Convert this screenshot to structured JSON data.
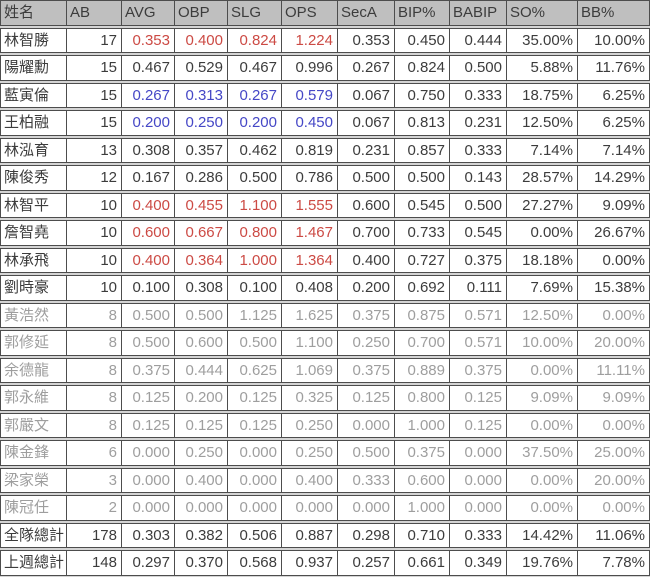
{
  "colors": {
    "gap_background": "#d4d4d4",
    "grid_border": "#4d4d4d",
    "header_background": "#bfbfbf",
    "header_text": "#3c3c3c",
    "default_text": "#3c3c3c",
    "muted_text": "#9e9e9e",
    "accent_red": "#cc4a44",
    "accent_blue": "#4547c6",
    "cell_background": "#ffffff"
  },
  "table": {
    "columns": [
      {
        "key": "name",
        "label": "姓名",
        "width": 66
      },
      {
        "key": "ab",
        "label": "AB",
        "width": 55
      },
      {
        "key": "avg",
        "label": "AVG",
        "width": 53
      },
      {
        "key": "obp",
        "label": "OBP",
        "width": 53
      },
      {
        "key": "slg",
        "label": "SLG",
        "width": 54
      },
      {
        "key": "ops",
        "label": "OPS",
        "width": 56
      },
      {
        "key": "seca",
        "label": "SecA",
        "width": 57
      },
      {
        "key": "bip_pct",
        "label": "BIP%",
        "width": 55
      },
      {
        "key": "babip",
        "label": "BABIP",
        "width": 57
      },
      {
        "key": "so_pct",
        "label": "SO%",
        "width": 71
      },
      {
        "key": "bb_pct",
        "label": "BB%",
        "width": 71
      }
    ],
    "accent_column_keys": [
      "avg",
      "obp",
      "slg",
      "ops"
    ],
    "rows": [
      {
        "cells": [
          "林智勝",
          "17",
          "0.353",
          "0.400",
          "0.824",
          "1.224",
          "0.353",
          "0.450",
          "0.444",
          "35.00%",
          "10.00%"
        ],
        "accent": "red",
        "muted": false
      },
      {
        "cells": [
          "陽耀勳",
          "15",
          "0.467",
          "0.529",
          "0.467",
          "0.996",
          "0.267",
          "0.824",
          "0.500",
          "5.88%",
          "11.76%"
        ],
        "accent": null,
        "muted": false
      },
      {
        "cells": [
          "藍寅倫",
          "15",
          "0.267",
          "0.313",
          "0.267",
          "0.579",
          "0.067",
          "0.750",
          "0.333",
          "18.75%",
          "6.25%"
        ],
        "accent": "blue",
        "muted": false
      },
      {
        "cells": [
          "王柏融",
          "15",
          "0.200",
          "0.250",
          "0.200",
          "0.450",
          "0.067",
          "0.813",
          "0.231",
          "12.50%",
          "6.25%"
        ],
        "accent": "blue",
        "muted": false
      },
      {
        "cells": [
          "林泓育",
          "13",
          "0.308",
          "0.357",
          "0.462",
          "0.819",
          "0.231",
          "0.857",
          "0.333",
          "7.14%",
          "7.14%"
        ],
        "accent": null,
        "muted": false
      },
      {
        "cells": [
          "陳俊秀",
          "12",
          "0.167",
          "0.286",
          "0.500",
          "0.786",
          "0.500",
          "0.500",
          "0.143",
          "28.57%",
          "14.29%"
        ],
        "accent": null,
        "muted": false
      },
      {
        "cells": [
          "林智平",
          "10",
          "0.400",
          "0.455",
          "1.100",
          "1.555",
          "0.600",
          "0.545",
          "0.500",
          "27.27%",
          "9.09%"
        ],
        "accent": "red",
        "muted": false
      },
      {
        "cells": [
          "詹智堯",
          "10",
          "0.600",
          "0.667",
          "0.800",
          "1.467",
          "0.700",
          "0.733",
          "0.545",
          "0.00%",
          "26.67%"
        ],
        "accent": "red",
        "muted": false
      },
      {
        "cells": [
          "林承飛",
          "10",
          "0.400",
          "0.364",
          "1.000",
          "1.364",
          "0.400",
          "0.727",
          "0.375",
          "18.18%",
          "0.00%"
        ],
        "accent": "red",
        "muted": false
      },
      {
        "cells": [
          "劉時豪",
          "10",
          "0.100",
          "0.308",
          "0.100",
          "0.408",
          "0.200",
          "0.692",
          "0.111",
          "7.69%",
          "15.38%"
        ],
        "accent": null,
        "muted": false
      },
      {
        "cells": [
          "黃浩然",
          "8",
          "0.500",
          "0.500",
          "1.125",
          "1.625",
          "0.375",
          "0.875",
          "0.571",
          "12.50%",
          "0.00%"
        ],
        "accent": null,
        "muted": true
      },
      {
        "cells": [
          "郭修延",
          "8",
          "0.500",
          "0.600",
          "0.500",
          "1.100",
          "0.250",
          "0.700",
          "0.571",
          "10.00%",
          "20.00%"
        ],
        "accent": null,
        "muted": true
      },
      {
        "cells": [
          "余德龍",
          "8",
          "0.375",
          "0.444",
          "0.625",
          "1.069",
          "0.375",
          "0.889",
          "0.375",
          "0.00%",
          "11.11%"
        ],
        "accent": null,
        "muted": true
      },
      {
        "cells": [
          "郭永維",
          "8",
          "0.125",
          "0.200",
          "0.125",
          "0.325",
          "0.125",
          "0.800",
          "0.125",
          "9.09%",
          "9.09%"
        ],
        "accent": null,
        "muted": true
      },
      {
        "cells": [
          "郭嚴文",
          "8",
          "0.125",
          "0.125",
          "0.125",
          "0.250",
          "0.000",
          "1.000",
          "0.125",
          "0.00%",
          "0.00%"
        ],
        "accent": null,
        "muted": true
      },
      {
        "cells": [
          "陳金鋒",
          "6",
          "0.000",
          "0.250",
          "0.000",
          "0.250",
          "0.500",
          "0.375",
          "0.000",
          "37.50%",
          "25.00%"
        ],
        "accent": null,
        "muted": true
      },
      {
        "cells": [
          "梁家榮",
          "3",
          "0.000",
          "0.400",
          "0.000",
          "0.400",
          "0.333",
          "0.600",
          "0.000",
          "0.00%",
          "20.00%"
        ],
        "accent": null,
        "muted": true
      },
      {
        "cells": [
          "陳冠任",
          "2",
          "0.000",
          "0.000",
          "0.000",
          "0.000",
          "0.000",
          "1.000",
          "0.000",
          "0.00%",
          "0.00%"
        ],
        "accent": null,
        "muted": true
      },
      {
        "cells": [
          "全隊總計",
          "178",
          "0.303",
          "0.382",
          "0.506",
          "0.887",
          "0.298",
          "0.710",
          "0.333",
          "14.42%",
          "11.06%"
        ],
        "accent": null,
        "muted": false
      },
      {
        "cells": [
          "上週總計",
          "148",
          "0.297",
          "0.370",
          "0.568",
          "0.937",
          "0.257",
          "0.661",
          "0.349",
          "19.76%",
          "7.78%"
        ],
        "accent": null,
        "muted": false
      }
    ]
  }
}
